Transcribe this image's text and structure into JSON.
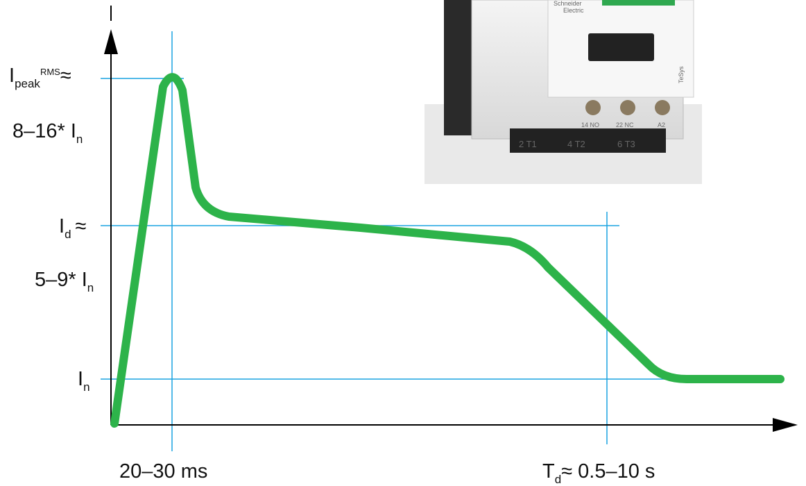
{
  "y_labels": [
    {
      "main": "I",
      "sub": "peak",
      "sup": "RMS",
      "suffix": "≈"
    },
    {
      "main": "8–16* I",
      "sub": "n"
    },
    {
      "main": "I",
      "sub": "d",
      "suffix": "≈"
    },
    {
      "main": "5–9* I",
      "sub": "n"
    },
    {
      "main": "I",
      "sub": "n"
    }
  ],
  "x_labels": [
    {
      "main": "20–30 ms"
    },
    {
      "main": "T",
      "sub": "d",
      "suffix": "≈ 0.5–10 s"
    }
  ],
  "device": {
    "brand": "Schneider",
    "sub_brand": "Electric",
    "series": "TeSys",
    "terminals": [
      "14 NO",
      "22 NC",
      "A2"
    ],
    "poles": [
      "2 T1",
      "4 T2",
      "6 T3"
    ]
  }
}
